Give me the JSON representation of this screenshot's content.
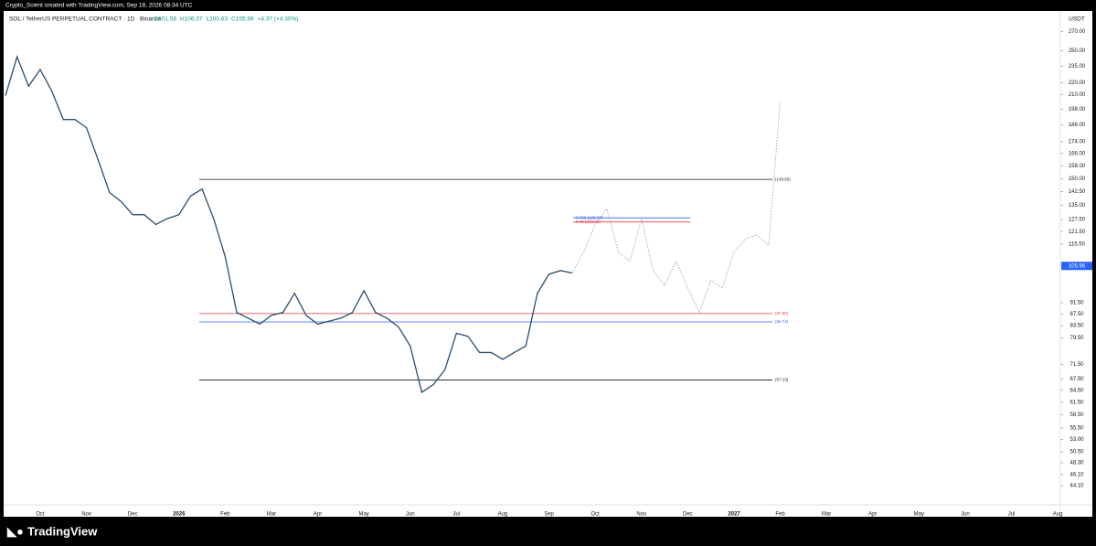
{
  "attribution": "Crypto_Scient created with TradingView.com, Sep 18, 2026 08:34 UTC",
  "brand": "TradingView",
  "chart_data": {
    "type": "line",
    "title": "SOL / TetherUS PERPETUAL CONTRACT · 1D · Binance",
    "ohlc": [
      "O101.58",
      "H106.37",
      "L100.63",
      "C105.96",
      "+4.37 (+4.30%)"
    ],
    "currency": "USDT",
    "last_price": 105.96,
    "log_scale": true,
    "ylim": [
      41.9,
      293
    ],
    "yticks": [
      {
        "value": 270,
        "label": "270.00"
      },
      {
        "value": 250,
        "label": "250.00"
      },
      {
        "value": 235,
        "label": "235.00"
      },
      {
        "value": 220,
        "label": "220.00"
      },
      {
        "value": 210,
        "label": "210.00"
      },
      {
        "value": 198,
        "label": "198.00"
      },
      {
        "value": 186,
        "label": "186.00"
      },
      {
        "value": 174,
        "label": "174.00"
      },
      {
        "value": 166,
        "label": "166.00"
      },
      {
        "value": 158,
        "label": "158.00"
      },
      {
        "value": 150,
        "label": "150.00"
      },
      {
        "value": 142.5,
        "label": "142.50"
      },
      {
        "value": 135,
        "label": "135.00"
      },
      {
        "value": 127.5,
        "label": "127.50"
      },
      {
        "value": 121.5,
        "label": "121.50"
      },
      {
        "value": 115.5,
        "label": "115.50"
      },
      {
        "value": 91.5,
        "label": "91.50"
      },
      {
        "value": 87.5,
        "label": "87.50"
      },
      {
        "value": 83.5,
        "label": "83.50"
      },
      {
        "value": 79.5,
        "label": "79.50"
      },
      {
        "value": 71.5,
        "label": "71.50"
      },
      {
        "value": 67.5,
        "label": "67.50"
      },
      {
        "value": 64.5,
        "label": "64.50"
      },
      {
        "value": 61.5,
        "label": "61.50"
      },
      {
        "value": 58.5,
        "label": "58.50"
      },
      {
        "value": 55.5,
        "label": "55.50"
      },
      {
        "value": 53,
        "label": "53.00"
      },
      {
        "value": 50.5,
        "label": "50.50"
      },
      {
        "value": 48.3,
        "label": "48.30"
      },
      {
        "value": 46.1,
        "label": "46.10"
      },
      {
        "value": 44.1,
        "label": "44.10"
      }
    ],
    "categories": [
      null,
      null,
      null,
      "Oct",
      null,
      null,
      null,
      "Nov",
      null,
      null,
      null,
      "Dec",
      null,
      null,
      null,
      "2026",
      null,
      null,
      null,
      "Feb",
      null,
      null,
      null,
      "Mar",
      null,
      null,
      null,
      "Apr",
      null,
      null,
      null,
      "May",
      null,
      null,
      null,
      "Jun",
      null,
      null,
      null,
      "Jul",
      null,
      null,
      null,
      "Aug",
      null,
      null,
      null,
      "Sep",
      null,
      null,
      null,
      "Oct",
      null,
      null,
      null,
      "Nov",
      null,
      null,
      null,
      "Dec",
      null,
      null,
      null,
      "2027",
      null,
      null,
      null,
      "Feb",
      null,
      null,
      null,
      "Mar",
      null,
      null,
      null,
      "Apr",
      null,
      null,
      null,
      "May",
      null,
      null,
      null,
      "Jun",
      null,
      null,
      null,
      "Jul",
      null,
      null,
      null,
      "Aug"
    ],
    "series": [
      {
        "name": "SOL",
        "color": "#2a4d6e",
        "dash": false,
        "values": [
          209,
          244,
          217,
          232,
          213,
          190,
          190,
          184,
          162,
          142,
          137,
          130,
          130,
          125,
          128,
          130,
          140,
          144,
          128,
          110,
          88,
          86,
          84,
          87,
          88,
          95,
          87,
          84,
          85,
          86,
          88,
          96,
          88,
          86,
          83,
          77,
          64,
          66,
          70,
          81,
          80,
          75,
          75,
          73,
          75,
          77,
          95,
          102.5,
          104,
          103,
          null,
          null,
          null,
          null,
          null,
          null,
          null,
          null,
          null,
          null,
          null,
          null,
          null,
          null,
          null,
          null,
          null,
          null,
          null,
          null,
          null,
          null,
          null,
          null,
          null,
          null,
          null,
          null,
          null,
          null,
          null,
          null,
          null,
          null,
          null,
          null,
          null,
          null,
          null,
          null,
          null,
          null
        ]
      },
      {
        "name": "Projection",
        "color": "#9598a1",
        "dash": true,
        "values": [
          null,
          null,
          null,
          null,
          null,
          null,
          null,
          null,
          null,
          null,
          null,
          null,
          null,
          null,
          null,
          null,
          null,
          null,
          null,
          null,
          null,
          null,
          null,
          null,
          null,
          null,
          null,
          null,
          null,
          null,
          null,
          null,
          null,
          null,
          null,
          null,
          null,
          null,
          null,
          null,
          null,
          null,
          null,
          null,
          null,
          null,
          null,
          null,
          null,
          103,
          112,
          125,
          133,
          112,
          108,
          128,
          104,
          98,
          108,
          97,
          88,
          100,
          97,
          112,
          118,
          120,
          115,
          205,
          null,
          null,
          null,
          null,
          null,
          null,
          null,
          null,
          null,
          null,
          null,
          null,
          null,
          null,
          null,
          null,
          null,
          null,
          null,
          null,
          null,
          null,
          null,
          null
        ]
      }
    ],
    "levels": [
      {
        "label": "(149.65)",
        "value": 149.65,
        "color": "#131722"
      },
      {
        "label": "0.786 (128.37)",
        "value": 128.37,
        "color": "#2962ff"
      },
      {
        "label": "0.75 (126.26)",
        "value": 126.26,
        "color": "#f23645"
      },
      {
        "label": "(87.60)",
        "value": 87.6,
        "color": "#f23645"
      },
      {
        "label": "(84.74)",
        "value": 84.74,
        "color": "#2962ff"
      },
      {
        "label": "(67.23)",
        "value": 67.23,
        "color": "#131722"
      }
    ]
  }
}
